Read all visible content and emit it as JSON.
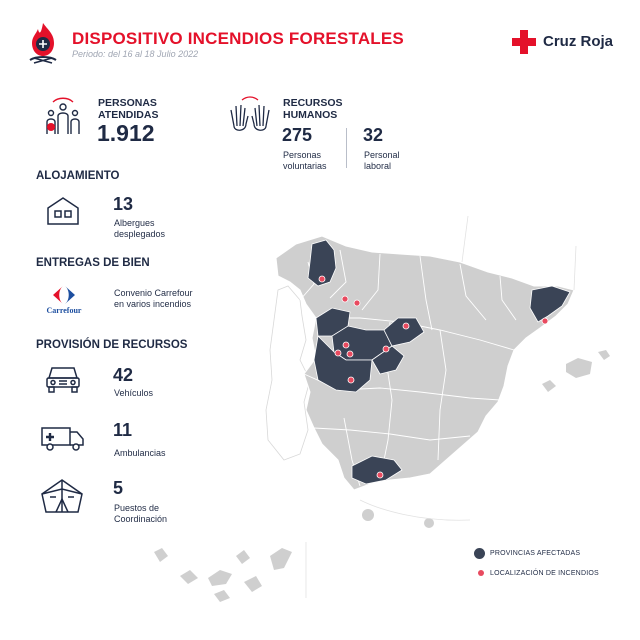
{
  "header": {
    "title": "DISPOSITIVO INCENDIOS FORESTALES",
    "period": "Periodo: del 16 al 18 Julio 2022",
    "brand": "Cruz Roja",
    "brand_color": "#e4112a",
    "logo_icon": "fire-emblem-icon",
    "brand_icon": "red-cross-icon"
  },
  "personas": {
    "label_line1": "PERSONAS",
    "label_line2": "ATENDIDAS",
    "value": "1.912",
    "icon": "family-icon"
  },
  "recursos_humanos": {
    "label_line1": "RECURSOS",
    "label_line2": "HUMANOS",
    "icon": "raised-hands-icon",
    "voluntarias": {
      "value": "275",
      "label_line1": "Personas",
      "label_line2": "voluntarias"
    },
    "laboral": {
      "value": "32",
      "label_line1": "Personal",
      "label_line2": "laboral"
    }
  },
  "alojamiento": {
    "section_title": "ALOJAMIENTO",
    "value": "13",
    "label_line1": "Albergues",
    "label_line2": "desplegados",
    "icon": "shelter-house-icon"
  },
  "entregas": {
    "section_title": "ENTREGAS DE BIEN",
    "logo_text": "Carrefour",
    "label_line1": "Convenio Carrefour",
    "label_line2": "en varios incendios",
    "icon": "carrefour-logo"
  },
  "provision": {
    "section_title": "PROVISIÓN DE RECURSOS",
    "vehiculos": {
      "value": "42",
      "label": "Vehículos",
      "icon": "jeep-icon"
    },
    "ambulancias": {
      "value": "11",
      "label": "Ambulancias",
      "icon": "ambulance-icon"
    },
    "puestos": {
      "value": "5",
      "label_line1": "Puestos de",
      "label_line2": "Coordinación",
      "icon": "tent-icon"
    }
  },
  "map": {
    "base_color": "#cfcfcf",
    "affected_color": "#3a4456",
    "fire_color": "#e84a5f",
    "legend": {
      "affected": "PROVINCIAS AFECTADAS",
      "fires": "LOCALIZACIÓN DE INCENDIOS"
    }
  }
}
